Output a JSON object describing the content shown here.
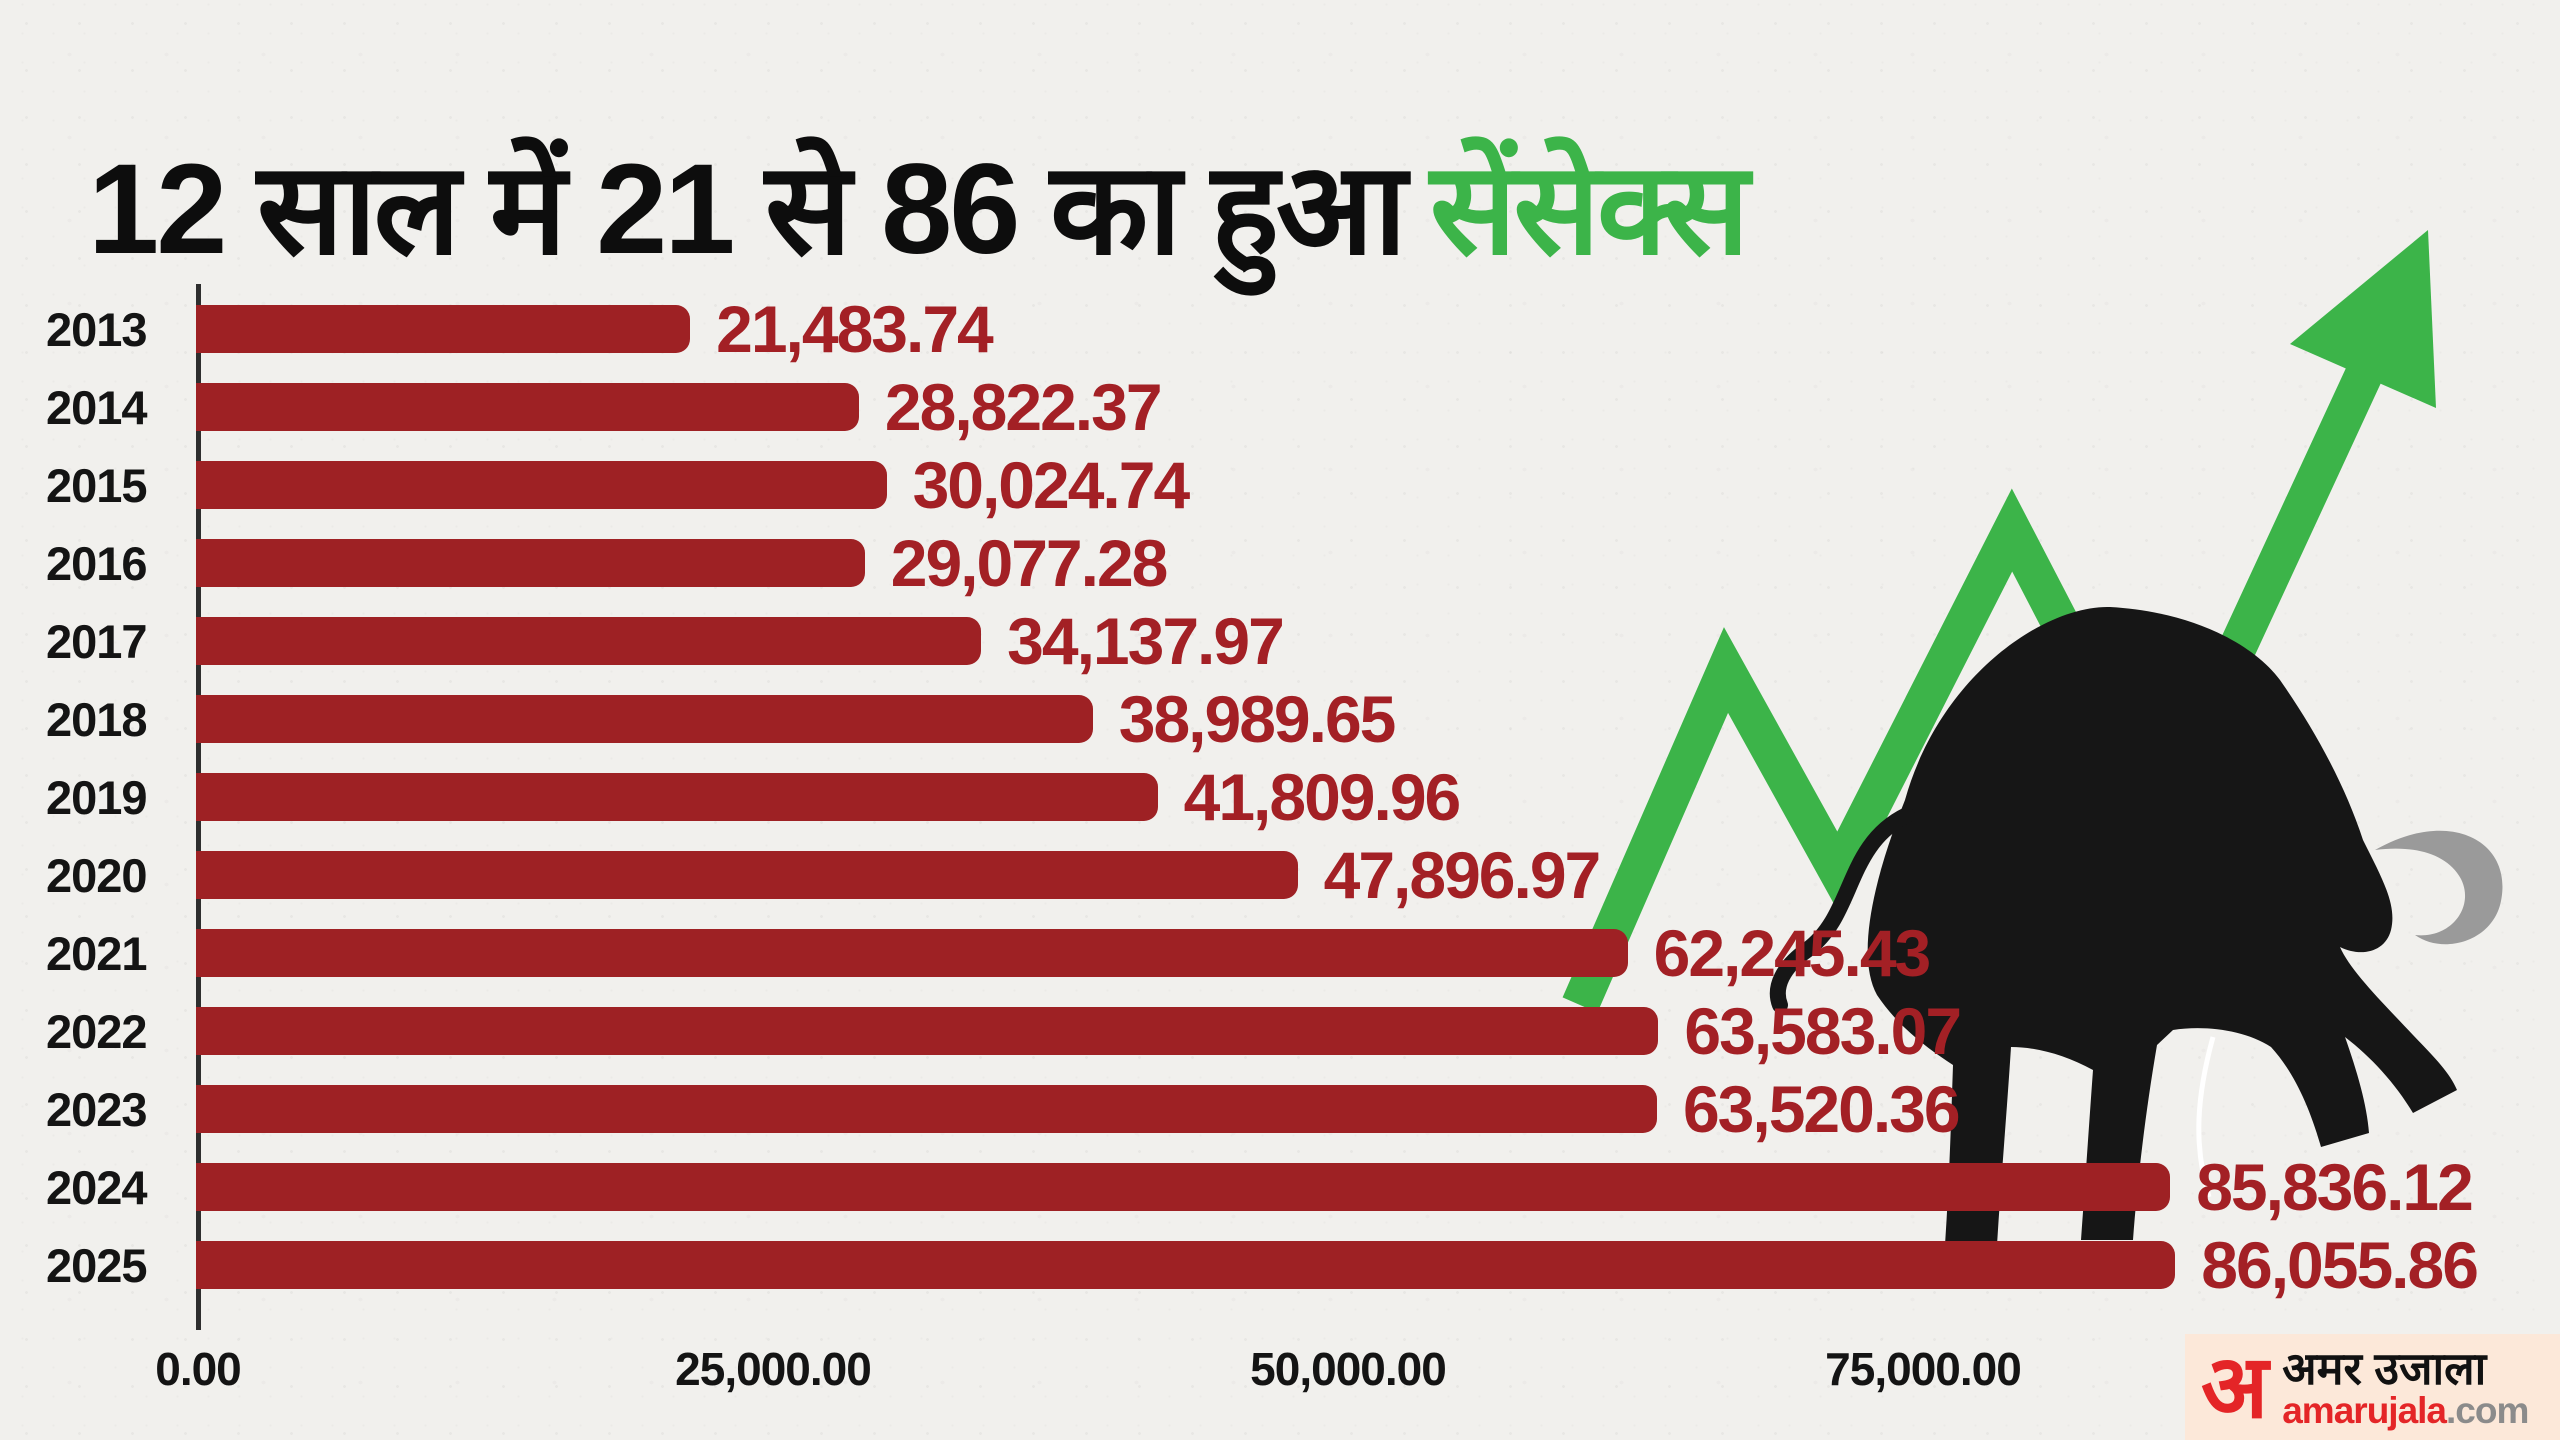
{
  "title": {
    "black": "12 साल में 21 से 86 का हुआ",
    "green": "सेंसेक्स",
    "green_color": "#3cb449"
  },
  "chart_data": {
    "type": "bar",
    "orientation": "horizontal",
    "title": "12 साल में 21 से 86 का हुआ सेंसेक्स",
    "categories": [
      "2013",
      "2014",
      "2015",
      "2016",
      "2017",
      "2018",
      "2019",
      "2020",
      "2021",
      "2022",
      "2023",
      "2024",
      "2025"
    ],
    "values": [
      21483.74,
      28822.37,
      30024.74,
      29077.28,
      34137.97,
      38989.65,
      41809.96,
      47896.97,
      62245.43,
      63583.07,
      63520.36,
      85836.12,
      86055.86
    ],
    "value_labels": [
      "21,483.74",
      "28,822.37",
      "30,024.74",
      "29,077.28",
      "34,137.97",
      "38,989.65",
      "41,809.96",
      "47,896.97",
      "62,245.43",
      "63,583.07",
      "63,520.36",
      "85,836.12",
      "86,055.86"
    ],
    "x_ticks": [
      "0.00",
      "25,000.00",
      "50,000.00",
      "75,000.00"
    ],
    "x_tick_values": [
      0,
      25000,
      50000,
      75000
    ],
    "xlim": [
      0,
      100000
    ],
    "grid": false,
    "legend": null,
    "bar_color": "#9e2124",
    "value_label_color": "#a32025",
    "axis_color": "#2e2e2e"
  },
  "illustration": {
    "arrow_color": "#3cb449",
    "bull_color": "#161616",
    "horn_color": "#9a9a9a"
  },
  "branding": {
    "logo_letter": "अ",
    "logo_hindi": "अमर उजाला",
    "logo_latin_red": "amarujala",
    "logo_latin_gray": ".com",
    "logo_bg": "#fce8d9",
    "logo_red": "#e42527",
    "logo_gray": "#8b8b8b"
  }
}
